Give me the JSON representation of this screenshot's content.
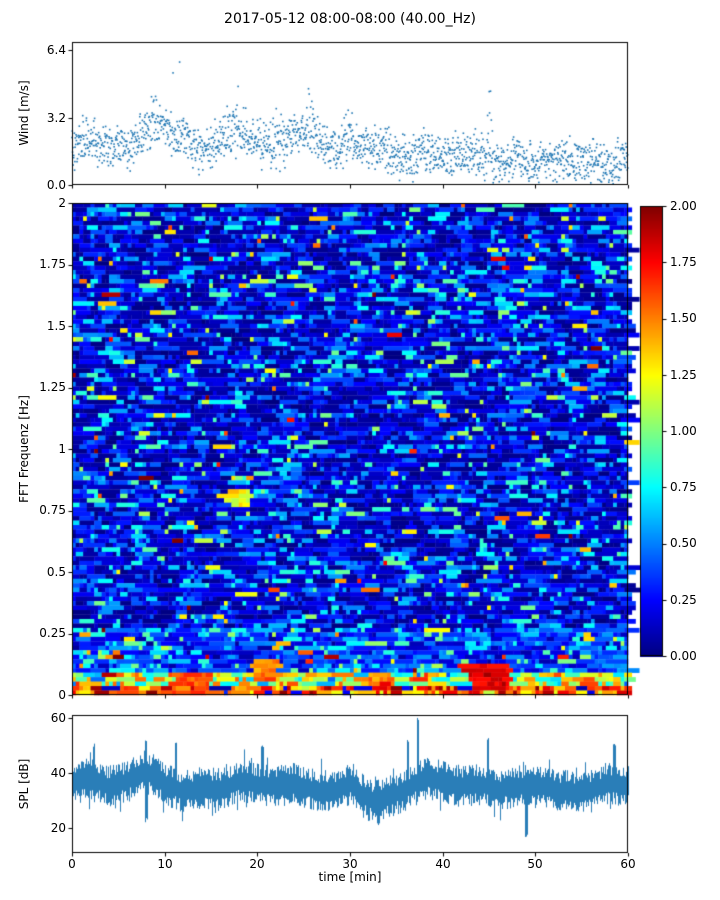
{
  "title": "2017-05-12 08:00-08:00 (40.00_Hz)",
  "x_axis": {
    "label": "time [min]",
    "tick_labels": [
      "0",
      "10",
      "20",
      "30",
      "40",
      "50",
      "60"
    ],
    "tick_values": [
      0,
      10,
      20,
      30,
      40,
      50,
      60
    ],
    "min": 0,
    "max": 60
  },
  "chart_data": [
    {
      "id": "wind",
      "type": "scatter",
      "ylabel": "Wind [m/s]",
      "ytick_labels": [
        "0.0",
        "3.2",
        "6.4"
      ],
      "ytick_values": [
        0,
        3.2,
        6.4
      ],
      "ylim": [
        0,
        6.8
      ],
      "marker_color": "#1f77b4",
      "n_points": 1750,
      "seed": 101,
      "envelope_step_min": 2,
      "envelope_mean": [
        1.8,
        2.2,
        2.0,
        1.6,
        2.6,
        2.8,
        2.2,
        1.6,
        2.2,
        2.4,
        2.2,
        1.8,
        2.4,
        2.4,
        1.7,
        2.0,
        1.8,
        1.6,
        1.3,
        1.5,
        1.2,
        1.6,
        1.4,
        1.1,
        1.3,
        1.0,
        1.3,
        1.0,
        1.2,
        1.0,
        1.3
      ],
      "spread": 0.85,
      "spikes": [
        {
          "x": 11,
          "peak": 6.4
        },
        {
          "x": 8.5,
          "peak": 4.4
        },
        {
          "x": 17.5,
          "peak": 4.7
        },
        {
          "x": 22,
          "peak": 4.2
        },
        {
          "x": 26,
          "peak": 4.6
        },
        {
          "x": 30,
          "peak": 4.0
        },
        {
          "x": 45,
          "peak": 4.7
        }
      ]
    },
    {
      "id": "spectrogram",
      "type": "heatmap",
      "ylabel": "FFT Frequenz [Hz]",
      "ytick_labels": [
        "0",
        "0.25",
        "0.5",
        "0.75",
        "1",
        "1.25",
        "1.5",
        "1.75",
        "2"
      ],
      "ytick_values": [
        0,
        0.25,
        0.5,
        0.75,
        1,
        1.25,
        1.5,
        1.75,
        2
      ],
      "ylim": [
        0,
        2
      ],
      "colormap": "jet",
      "vmin": 0,
      "vmax": 2,
      "colorbar_tick_labels": [
        "0.00",
        "0.25",
        "0.50",
        "0.75",
        "1.00",
        "1.25",
        "1.50",
        "1.75",
        "2.00"
      ],
      "colorbar_tick_values": [
        0,
        0.25,
        0.5,
        0.75,
        1,
        1.25,
        1.5,
        1.75,
        2
      ],
      "rows": 110,
      "cols": 150,
      "seed": 202,
      "base_exp_mean": 0.3,
      "mid_boost_below_hz": 0.27,
      "low_freq_boost_max_hz": 0.1,
      "very_low_freq_hz": 0.035,
      "hotspots": [
        {
          "x": 45,
          "f": 0.07,
          "w": 2.2,
          "h": 0.06,
          "v": 1.95
        },
        {
          "x": 13,
          "f": 0.05,
          "w": 2.0,
          "h": 0.05,
          "v": 1.7
        },
        {
          "x": 18,
          "f": 0.8,
          "w": 1.2,
          "h": 0.035,
          "v": 1.35
        },
        {
          "x": 21,
          "f": 0.1,
          "w": 1.5,
          "h": 0.05,
          "v": 1.6
        },
        {
          "x": 33,
          "f": 0.05,
          "w": 1.5,
          "h": 0.04,
          "v": 1.6
        }
      ]
    },
    {
      "id": "spl",
      "type": "line",
      "ylabel": "SPL [dB]",
      "ytick_labels": [
        "20",
        "40",
        "60"
      ],
      "ytick_values": [
        20,
        40,
        60
      ],
      "ylim": [
        11,
        61
      ],
      "line_color": "#1f77b4",
      "seed": 303,
      "mean_step_min": 2,
      "mean": [
        36,
        38,
        35,
        37,
        41,
        36,
        33,
        35,
        34,
        37,
        36,
        35,
        36,
        34,
        33,
        36,
        30,
        31,
        34,
        38,
        37,
        35,
        36,
        34,
        35,
        36,
        34,
        33,
        34,
        36,
        35
      ],
      "noise_amp": 5.5,
      "spikes": [
        {
          "x": 2.3,
          "peak": 51
        },
        {
          "x": 11.2,
          "peak": 52
        },
        {
          "x": 20.5,
          "peak": 50
        },
        {
          "x": 36.2,
          "peak": 52
        },
        {
          "x": 37.3,
          "peak": 60
        },
        {
          "x": 44.8,
          "peak": 53
        },
        {
          "x": 58.5,
          "peak": 51
        }
      ],
      "dips": [
        {
          "x": 8,
          "low": 22
        },
        {
          "x": 33,
          "low": 20
        },
        {
          "x": 49,
          "low": 16
        }
      ]
    }
  ]
}
